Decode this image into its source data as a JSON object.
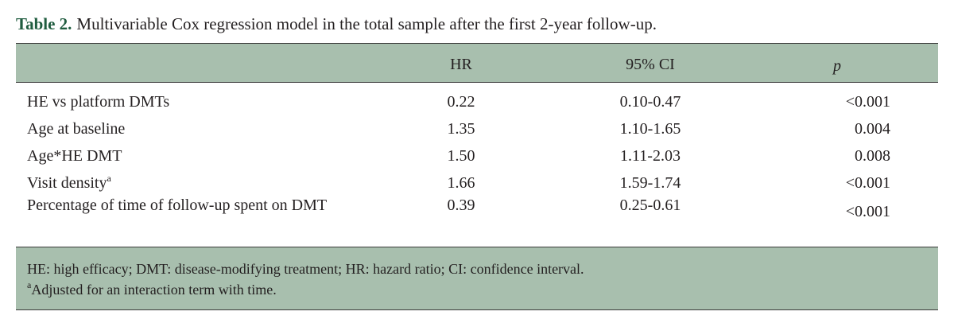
{
  "caption": {
    "label": "Table 2.",
    "text": "Multivariable Cox regression model in the total sample after the first 2-year follow-up."
  },
  "table": {
    "headers": {
      "hr": "HR",
      "ci": "95% CI",
      "p": "p"
    },
    "rows": [
      {
        "label": "HE vs platform DMTs",
        "hr": "0.22",
        "ci": "0.10-0.47",
        "p": "<0.001"
      },
      {
        "label": "Age at baseline",
        "hr": "1.35",
        "ci": "1.10-1.65",
        "p": "0.004"
      },
      {
        "label": "Age*HE DMT",
        "hr": "1.50",
        "ci": "1.11-2.03",
        "p": "0.008"
      },
      {
        "label": "Visit density",
        "label_sup": "a",
        "hr": "1.66",
        "ci": "1.59-1.74",
        "p": "<0.001"
      },
      {
        "label": "Percentage of time of follow-up spent on DMT",
        "hr": "0.39",
        "ci": "0.25-0.61",
        "p": "<0.001"
      }
    ]
  },
  "footnotes": {
    "abbreviations": "HE: high efficacy; DMT: disease-modifying treatment; HR: hazard ratio; CI: confidence interval.",
    "note_sup": "a",
    "note": "Adjusted for an interaction term with time."
  }
}
